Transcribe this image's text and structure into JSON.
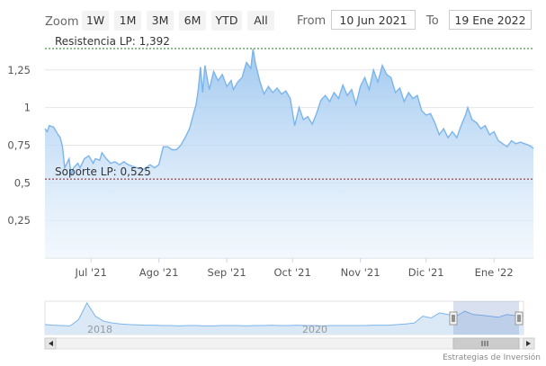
{
  "toolbar": {
    "zoom_label": "Zoom",
    "buttons": [
      "1W",
      "1M",
      "3M",
      "6M",
      "YTD",
      "All"
    ],
    "from_label": "From",
    "from_value": "10 Jun 2021",
    "to_label": "To",
    "to_value": "19 Ene 2022"
  },
  "credit": "Estrategias de Inversión",
  "colors": {
    "line": "#7cb5ec",
    "fill_top": "#a8cdf0",
    "resistance": "#1a7a1a",
    "support": "#8b1a1a"
  },
  "chart_data": {
    "type": "area",
    "x_start": "2021-06-10",
    "x_end": "2022-01-19",
    "y_ticks": [
      "0,25",
      "0,5",
      "0,75",
      "1",
      "1,25"
    ],
    "y_tick_values": [
      0.25,
      0.5,
      0.75,
      1.0,
      1.25
    ],
    "ylim": [
      0.0,
      1.44
    ],
    "x_ticks": [
      {
        "date": "2021-07-01",
        "label": "Jul '21"
      },
      {
        "date": "2021-08-01",
        "label": "Ago '21"
      },
      {
        "date": "2021-09-01",
        "label": "Sep '21"
      },
      {
        "date": "2021-10-01",
        "label": "Oct '21"
      },
      {
        "date": "2021-11-01",
        "label": "Nov '21"
      },
      {
        "date": "2021-12-01",
        "label": "Dic '21"
      },
      {
        "date": "2022-01-01",
        "label": "Ene '22"
      }
    ],
    "plot_lines": [
      {
        "label": "Resistencia LP: 1,392",
        "value": 1.392
      },
      {
        "label": "Soporte LP: 0,525",
        "value": 0.525
      }
    ],
    "series": [
      {
        "points": [
          [
            "2021-06-10",
            0.86
          ],
          [
            "2021-06-11",
            0.84
          ],
          [
            "2021-06-12",
            0.88
          ],
          [
            "2021-06-14",
            0.87
          ],
          [
            "2021-06-16",
            0.82
          ],
          [
            "2021-06-17",
            0.8
          ],
          [
            "2021-06-18",
            0.74
          ],
          [
            "2021-06-19",
            0.6
          ],
          [
            "2021-06-21",
            0.66
          ],
          [
            "2021-06-22",
            0.55
          ],
          [
            "2021-06-23",
            0.6
          ],
          [
            "2021-06-25",
            0.63
          ],
          [
            "2021-06-26",
            0.6
          ],
          [
            "2021-06-28",
            0.66
          ],
          [
            "2021-06-30",
            0.68
          ],
          [
            "2021-07-02",
            0.63
          ],
          [
            "2021-07-03",
            0.66
          ],
          [
            "2021-07-05",
            0.65
          ],
          [
            "2021-07-06",
            0.7
          ],
          [
            "2021-07-08",
            0.66
          ],
          [
            "2021-07-10",
            0.63
          ],
          [
            "2021-07-12",
            0.64
          ],
          [
            "2021-07-14",
            0.62
          ],
          [
            "2021-07-16",
            0.64
          ],
          [
            "2021-07-18",
            0.62
          ],
          [
            "2021-07-20",
            0.61
          ],
          [
            "2021-07-22",
            0.6
          ],
          [
            "2021-07-25",
            0.59
          ],
          [
            "2021-07-28",
            0.62
          ],
          [
            "2021-07-30",
            0.6
          ],
          [
            "2021-08-01",
            0.62
          ],
          [
            "2021-08-03",
            0.74
          ],
          [
            "2021-08-05",
            0.74
          ],
          [
            "2021-08-07",
            0.72
          ],
          [
            "2021-08-09",
            0.72
          ],
          [
            "2021-08-11",
            0.75
          ],
          [
            "2021-08-13",
            0.8
          ],
          [
            "2021-08-15",
            0.86
          ],
          [
            "2021-08-17",
            0.97
          ],
          [
            "2021-08-18",
            1.02
          ],
          [
            "2021-08-19",
            1.12
          ],
          [
            "2021-08-20",
            1.27
          ],
          [
            "2021-08-21",
            1.1
          ],
          [
            "2021-08-22",
            1.28
          ],
          [
            "2021-08-24",
            1.12
          ],
          [
            "2021-08-26",
            1.24
          ],
          [
            "2021-08-28",
            1.18
          ],
          [
            "2021-08-30",
            1.22
          ],
          [
            "2021-09-01",
            1.14
          ],
          [
            "2021-09-03",
            1.18
          ],
          [
            "2021-09-04",
            1.12
          ],
          [
            "2021-09-06",
            1.17
          ],
          [
            "2021-09-08",
            1.2
          ],
          [
            "2021-09-10",
            1.3
          ],
          [
            "2021-09-12",
            1.26
          ],
          [
            "2021-09-13",
            1.39
          ],
          [
            "2021-09-14",
            1.3
          ],
          [
            "2021-09-16",
            1.18
          ],
          [
            "2021-09-18",
            1.09
          ],
          [
            "2021-09-20",
            1.14
          ],
          [
            "2021-09-22",
            1.1
          ],
          [
            "2021-09-24",
            1.13
          ],
          [
            "2021-09-26",
            1.09
          ],
          [
            "2021-09-28",
            1.11
          ],
          [
            "2021-09-30",
            1.06
          ],
          [
            "2021-10-02",
            0.88
          ],
          [
            "2021-10-04",
            1.0
          ],
          [
            "2021-10-06",
            0.92
          ],
          [
            "2021-10-08",
            0.94
          ],
          [
            "2021-10-10",
            0.89
          ],
          [
            "2021-10-12",
            0.96
          ],
          [
            "2021-10-14",
            1.05
          ],
          [
            "2021-10-16",
            1.08
          ],
          [
            "2021-10-18",
            1.04
          ],
          [
            "2021-10-20",
            1.1
          ],
          [
            "2021-10-22",
            1.06
          ],
          [
            "2021-10-24",
            1.15
          ],
          [
            "2021-10-26",
            1.08
          ],
          [
            "2021-10-28",
            1.12
          ],
          [
            "2021-10-30",
            1.02
          ],
          [
            "2021-11-01",
            1.14
          ],
          [
            "2021-11-03",
            1.2
          ],
          [
            "2021-11-05",
            1.12
          ],
          [
            "2021-11-07",
            1.25
          ],
          [
            "2021-11-09",
            1.17
          ],
          [
            "2021-11-11",
            1.28
          ],
          [
            "2021-11-13",
            1.22
          ],
          [
            "2021-11-15",
            1.2
          ],
          [
            "2021-11-17",
            1.1
          ],
          [
            "2021-11-19",
            1.13
          ],
          [
            "2021-11-21",
            1.04
          ],
          [
            "2021-11-23",
            1.1
          ],
          [
            "2021-11-25",
            1.06
          ],
          [
            "2021-11-27",
            1.08
          ],
          [
            "2021-11-29",
            0.98
          ],
          [
            "2021-12-01",
            0.95
          ],
          [
            "2021-12-03",
            0.96
          ],
          [
            "2021-12-05",
            0.9
          ],
          [
            "2021-12-07",
            0.82
          ],
          [
            "2021-12-09",
            0.86
          ],
          [
            "2021-12-11",
            0.8
          ],
          [
            "2021-12-13",
            0.84
          ],
          [
            "2021-12-15",
            0.8
          ],
          [
            "2021-12-17",
            0.88
          ],
          [
            "2021-12-19",
            0.95
          ],
          [
            "2021-12-20",
            1.0
          ],
          [
            "2021-12-22",
            0.92
          ],
          [
            "2021-12-24",
            0.9
          ],
          [
            "2021-12-26",
            0.86
          ],
          [
            "2021-12-28",
            0.88
          ],
          [
            "2021-12-30",
            0.82
          ],
          [
            "2022-01-01",
            0.84
          ],
          [
            "2022-01-03",
            0.78
          ],
          [
            "2022-01-05",
            0.76
          ],
          [
            "2022-01-07",
            0.74
          ],
          [
            "2022-01-09",
            0.78
          ],
          [
            "2022-01-11",
            0.76
          ],
          [
            "2022-01-13",
            0.77
          ],
          [
            "2022-01-15",
            0.76
          ],
          [
            "2022-01-17",
            0.75
          ],
          [
            "2022-01-19",
            0.73
          ]
        ]
      }
    ],
    "navigator": {
      "labels": [
        "2018",
        "2020"
      ],
      "series": [
        0.3,
        0.28,
        0.27,
        0.26,
        0.45,
        0.95,
        0.55,
        0.4,
        0.35,
        0.32,
        0.3,
        0.29,
        0.28,
        0.28,
        0.27,
        0.27,
        0.26,
        0.27,
        0.27,
        0.26,
        0.26,
        0.27,
        0.27,
        0.27,
        0.26,
        0.27,
        0.27,
        0.28,
        0.27,
        0.27,
        0.28,
        0.27,
        0.27,
        0.26,
        0.27,
        0.27,
        0.27,
        0.27,
        0.27,
        0.28,
        0.28,
        0.28,
        0.3,
        0.32,
        0.35,
        0.55,
        0.5,
        0.65,
        0.6,
        0.55,
        0.7,
        0.6,
        0.58,
        0.55,
        0.52,
        0.6,
        0.57,
        0.55
      ]
    }
  }
}
